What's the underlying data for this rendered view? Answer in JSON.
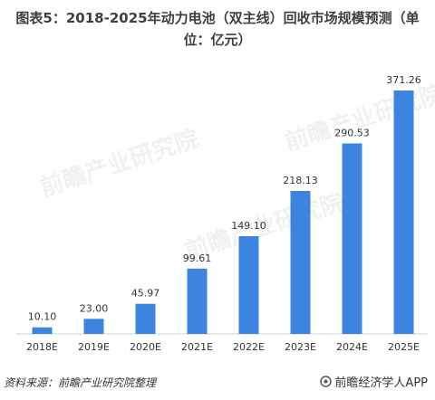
{
  "title_line1": "图表5：2018-2025年动力电池（双主线）回收市场规模预测（单",
  "title_line2": "位：亿元）",
  "source": "资料来源：前瞻产业研究院整理",
  "brand": "前瞻经济学人APP",
  "watermark": "前瞻产业研究院",
  "colors": {
    "bar": "#3d84e0",
    "axis": "#d0d0d0",
    "text": "#333333"
  },
  "chart_data": {
    "type": "bar",
    "title": "图表5：2018-2025年动力电池（双主线）回收市场规模预测（单位：亿元）",
    "categories": [
      "2018E",
      "2019E",
      "2020E",
      "2021E",
      "2022E",
      "2023E",
      "2024E",
      "2025E"
    ],
    "values": [
      10.1,
      23.0,
      45.97,
      99.61,
      149.1,
      218.13,
      290.53,
      371.26
    ],
    "value_labels": [
      "10.10",
      "23.00",
      "45.97",
      "99.61",
      "149.10",
      "218.13",
      "290.53",
      "371.26"
    ],
    "xlabel": "",
    "ylabel": "",
    "ylim": [
      0,
      371.26
    ],
    "grid": false,
    "legend": "none"
  }
}
